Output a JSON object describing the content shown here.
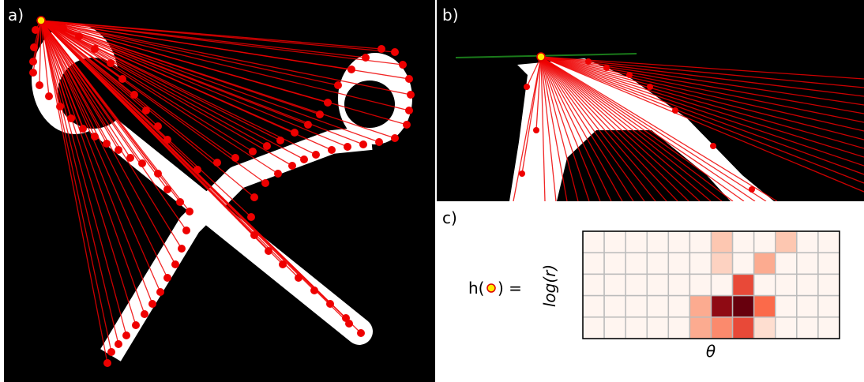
{
  "panels": {
    "a": "a)",
    "b": "b)",
    "c": "c)"
  },
  "formula": {
    "prefix": "h(",
    "suffix": ") ="
  },
  "heatmap": {
    "y_label": "log(r)",
    "x_label": "θ",
    "cells": [
      [
        0,
        0,
        0,
        0,
        0,
        0,
        2,
        0,
        0,
        2,
        0,
        0
      ],
      [
        0,
        0,
        0,
        0,
        0,
        0,
        1.5,
        0,
        3,
        0,
        0,
        0
      ],
      [
        0,
        0,
        0,
        0,
        0,
        0,
        0,
        6,
        0,
        0,
        0,
        0
      ],
      [
        0,
        0,
        0,
        0,
        0,
        3,
        9,
        10,
        5,
        0,
        0,
        0
      ],
      [
        0,
        0,
        0,
        0,
        0,
        3,
        4,
        6,
        1,
        0,
        0,
        0
      ]
    ]
  }
}
